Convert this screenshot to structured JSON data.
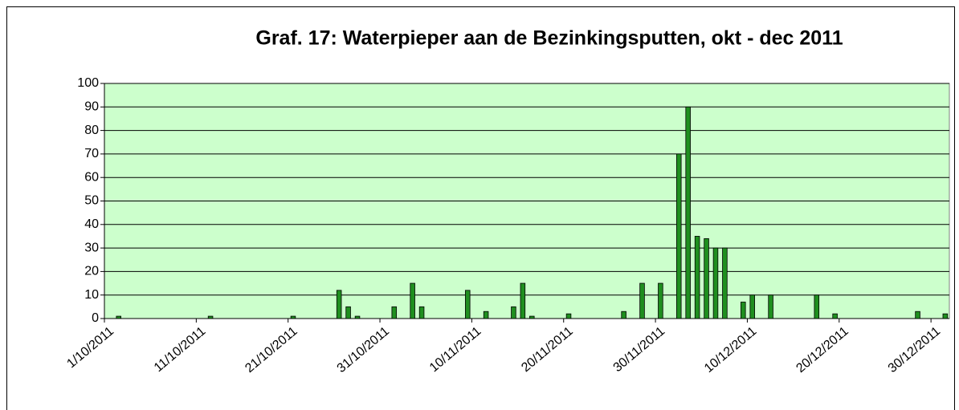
{
  "chart_data": {
    "type": "bar",
    "title": "Graf. 17: Waterpieper aan de Bezinkingsputten, okt - dec 2011",
    "categories": [
      "1/10/2011",
      null,
      null,
      null,
      null,
      null,
      null,
      null,
      null,
      null,
      "11/10/2011",
      null,
      null,
      null,
      null,
      null,
      null,
      null,
      null,
      null,
      "21/10/2011",
      null,
      null,
      null,
      null,
      null,
      null,
      null,
      null,
      null,
      "31/10/2011",
      null,
      null,
      null,
      null,
      null,
      null,
      null,
      null,
      null,
      "10/11/2011",
      null,
      null,
      null,
      null,
      null,
      null,
      null,
      null,
      null,
      "20/11/2011",
      null,
      null,
      null,
      null,
      null,
      null,
      null,
      null,
      null,
      "30/11/2011",
      null,
      null,
      null,
      null,
      null,
      null,
      null,
      null,
      null,
      "10/12/2011",
      null,
      null,
      null,
      null,
      null,
      null,
      null,
      null,
      null,
      "20/12/2011",
      null,
      null,
      null,
      null,
      null,
      null,
      null,
      null,
      null,
      "30/12/2011",
      null
    ],
    "values": [
      0,
      1,
      0,
      0,
      0,
      0,
      0,
      0,
      0,
      0,
      0,
      1,
      0,
      0,
      0,
      0,
      0,
      0,
      0,
      0,
      1,
      0,
      0,
      0,
      0,
      12,
      5,
      1,
      0,
      0,
      0,
      5,
      0,
      15,
      5,
      0,
      0,
      0,
      0,
      12,
      0,
      3,
      0,
      0,
      5,
      15,
      1,
      0,
      0,
      0,
      2,
      0,
      0,
      0,
      0,
      0,
      3,
      0,
      15,
      0,
      15,
      0,
      70,
      90,
      35,
      34,
      30,
      30,
      0,
      7,
      10,
      0,
      10,
      0,
      0,
      0,
      0,
      10,
      0,
      2,
      0,
      0,
      0,
      0,
      0,
      0,
      0,
      0,
      3,
      0,
      0,
      2
    ],
    "color": "#1f8f1f",
    "plot_background": "#ccffcc",
    "ylim": [
      0,
      100
    ],
    "yticks": [
      0,
      10,
      20,
      30,
      40,
      50,
      60,
      70,
      80,
      90,
      100
    ],
    "grid": true
  }
}
